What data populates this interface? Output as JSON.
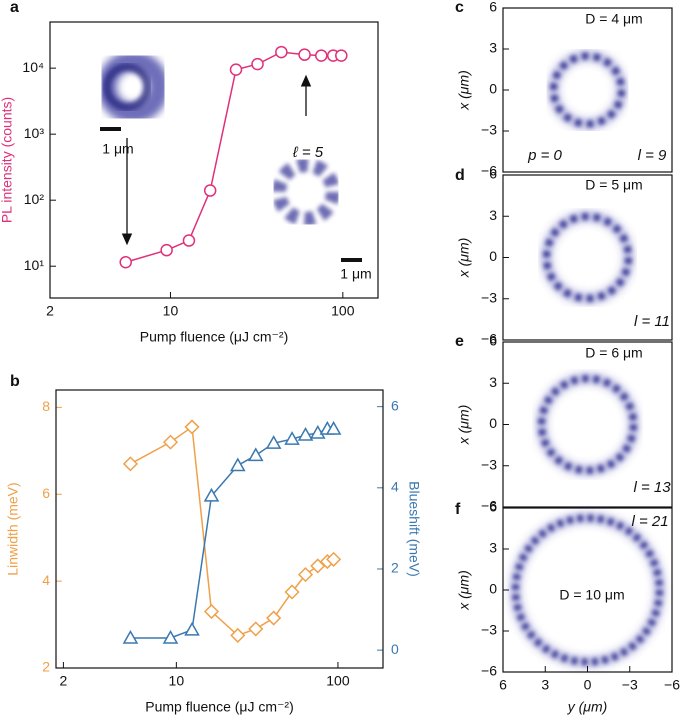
{
  "chart_data": [
    {
      "type": "line",
      "title": "a",
      "xlabel": "Pump fluence (μJ cm⁻²)",
      "ylabel": "PL intensity (counts)",
      "xscale": "log",
      "yscale": "log",
      "xlim": [
        2,
        160
      ],
      "ylim": [
        3.3,
        50000
      ],
      "xticks": [
        2,
        10,
        100
      ],
      "yticks": [
        {
          "value": 10,
          "label": "10¹"
        },
        {
          "value": 100,
          "label": "10²"
        },
        {
          "value": 1000,
          "label": "10³"
        },
        {
          "value": 10000,
          "label": "10⁴"
        }
      ],
      "x": [
        5.5,
        9.5,
        12.8,
        17,
        24,
        32,
        44,
        60,
        75,
        88,
        98
      ],
      "series": [
        {
          "color": "#e0307a",
          "marker": "circle",
          "values": [
            11.5,
            17.5,
            24.5,
            140,
            9500,
            11500,
            17500,
            16000,
            15500,
            15500,
            15500
          ]
        }
      ],
      "annotations": [
        "1 μm",
        "ℓ = 5",
        "1 μm"
      ]
    },
    {
      "type": "line",
      "title": "b",
      "xlabel": "Pump fluence (μJ cm⁻²)",
      "ylabel": "Linwidth (meV)",
      "y2label": "Blueshift (meV)",
      "xscale": "log",
      "xlim": [
        1.8,
        190
      ],
      "ylim": [
        2,
        8.4
      ],
      "y2lim": [
        -0.44,
        6.41
      ],
      "xticks": [
        2,
        10,
        100
      ],
      "yticks": [
        2,
        4,
        6,
        8
      ],
      "y2ticks": [
        0,
        2,
        4,
        6
      ],
      "x": [
        5.2,
        9.2,
        12.5,
        16.5,
        24,
        31,
        40,
        52,
        63,
        75,
        86,
        94
      ],
      "series": [
        {
          "color": "#f0a048",
          "marker": "diamond",
          "values": [
            6.7,
            7.2,
            7.55,
            3.3,
            2.75,
            2.9,
            3.15,
            3.75,
            4.15,
            4.35,
            4.45,
            4.5
          ]
        },
        {
          "color": "#3a78b0",
          "marker": "triangle",
          "axis": "y2",
          "values": [
            0.3,
            0.3,
            0.5,
            3.8,
            4.55,
            4.8,
            5.1,
            5.2,
            5.3,
            5.35,
            5.45,
            5.45
          ]
        }
      ]
    },
    {
      "type": "image",
      "title": "c",
      "ylabel": "x (μm)",
      "ylim": [
        -6,
        6
      ],
      "yticks": [
        6,
        3,
        0,
        {
          "value": -3,
          "label": "−3"
        },
        {
          "value": -6,
          "label": "−6"
        }
      ],
      "annotations": [
        "D = 4 μm",
        "p = 0",
        "l = 9"
      ]
    },
    {
      "type": "image",
      "title": "d",
      "ylabel": "x (μm)",
      "ylim": [
        -6,
        6
      ],
      "yticks": [
        6,
        3,
        0,
        {
          "value": -3,
          "label": "−3"
        },
        {
          "value": -6,
          "label": "−6"
        }
      ],
      "annotations": [
        "D = 5 μm",
        "l = 11"
      ]
    },
    {
      "type": "image",
      "title": "e",
      "ylabel": "x (μm)",
      "ylim": [
        -6,
        6
      ],
      "yticks": [
        6,
        3,
        0,
        {
          "value": -3,
          "label": "−3"
        },
        {
          "value": -6,
          "label": "−6"
        }
      ],
      "annotations": [
        "D = 6 μm",
        "l = 13"
      ]
    },
    {
      "type": "image",
      "title": "f",
      "ylabel": "x (μm)",
      "xlabel": "y (μm)",
      "ylim": [
        -6,
        6
      ],
      "xlim": [
        6,
        -6
      ],
      "yticks": [
        6,
        3,
        0,
        {
          "value": -3,
          "label": "−3"
        },
        {
          "value": -6,
          "label": "−6"
        }
      ],
      "xticks": [
        6,
        3,
        0,
        {
          "value": -3,
          "label": "−3"
        },
        {
          "value": -6,
          "label": "−6"
        }
      ],
      "annotations": [
        "l = 21",
        "D = 10 μm"
      ]
    }
  ]
}
